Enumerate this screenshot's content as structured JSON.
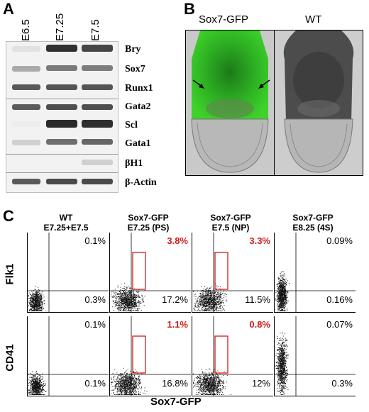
{
  "panels": {
    "A": {
      "letter": "A",
      "lanes": [
        "E6.5",
        "E7.25",
        "E7.5"
      ],
      "genes": [
        "Bry",
        "Sox7",
        "Runx1",
        "Gata2",
        "Scl",
        "Gata1",
        "βH1",
        "β-Actin"
      ]
    },
    "B": {
      "letter": "B",
      "labels": [
        "Sox7-GFP",
        "WT"
      ]
    },
    "C": {
      "letter": "C",
      "columns": [
        {
          "title": "WT\nE7.25+E7.5"
        },
        {
          "title": "Sox7-GFP\nE7.25 (PS)"
        },
        {
          "title": "Sox7-GFP\nE7.5 (NP)"
        },
        {
          "title": "Sox7-GFP\nE8.25 (4S)"
        }
      ],
      "row_labels": [
        "Flk1",
        "CD41"
      ],
      "x_label": "Sox7-GFP",
      "flk1_top": [
        "0.1%",
        "3.8%",
        "3.3%",
        "0.09%"
      ],
      "flk1_bottom": [
        "0.3%",
        "17.2%",
        "11.5%",
        "0.16%"
      ],
      "cd41_top": [
        "0.1%",
        "1.1%",
        "0.8%",
        "0.07%"
      ],
      "cd41_bottom": [
        "0.1%",
        "16.8%",
        "12%",
        "0.3%"
      ]
    }
  },
  "colors": {
    "highlight": "#d21b1b",
    "gfp": "#3fd22a"
  }
}
